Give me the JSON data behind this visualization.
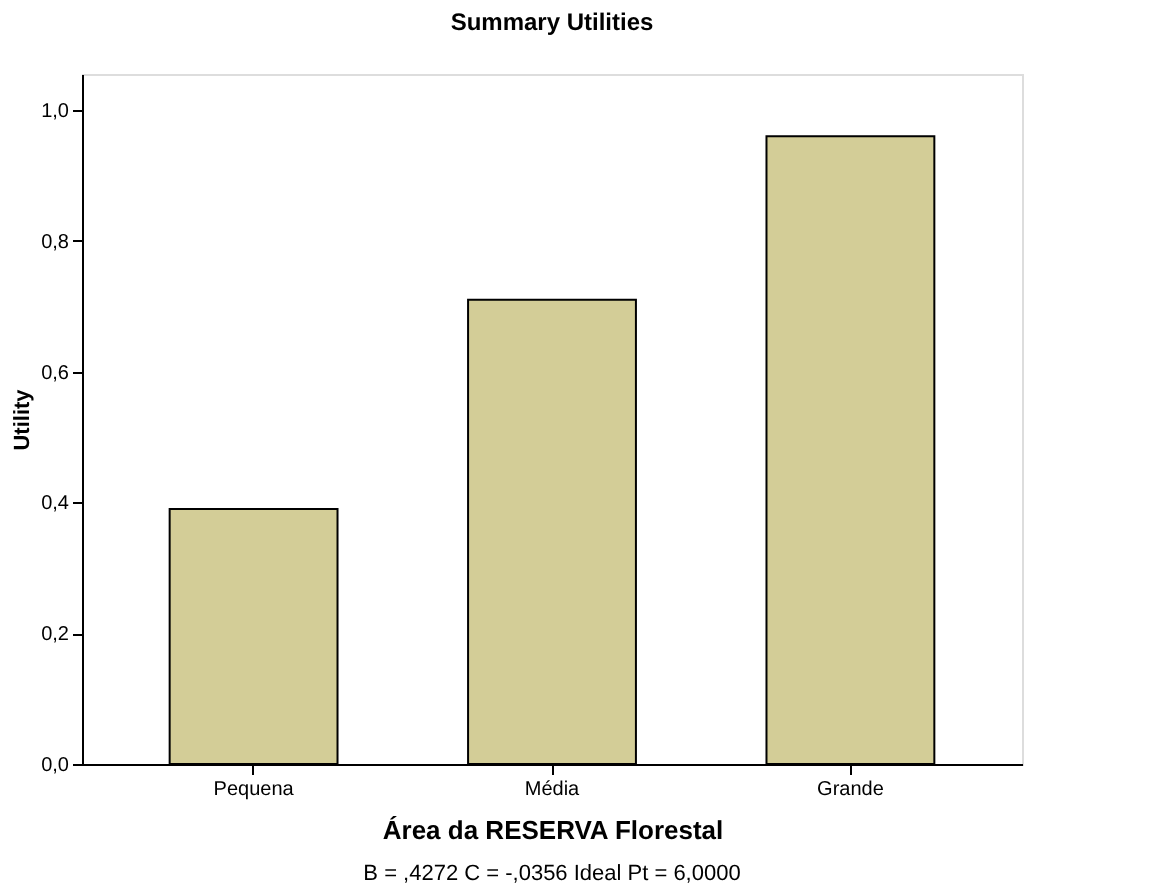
{
  "chart_data": {
    "type": "bar",
    "title": "Summary Utilities",
    "categories": [
      "Pequena",
      "Média",
      "Grande"
    ],
    "values": [
      0.39,
      0.71,
      0.96
    ],
    "color": "#d3cd97",
    "xlabel": "Área da RESERVA Florestal",
    "ylabel": "Utility",
    "ylim": [
      0,
      1.055
    ],
    "yticks": [
      {
        "value": 0,
        "label": "0,0"
      },
      {
        "value": 0.2,
        "label": "0,2"
      },
      {
        "value": 0.4,
        "label": "0,4"
      },
      {
        "value": 0.6,
        "label": "0,6"
      },
      {
        "value": 0.8,
        "label": "0,8"
      },
      {
        "value": 1.0,
        "label": "1,0"
      }
    ],
    "grid": false,
    "annotations": [
      "B = ,4272 C = -,0356 Ideal Pt = 6,0000"
    ]
  }
}
